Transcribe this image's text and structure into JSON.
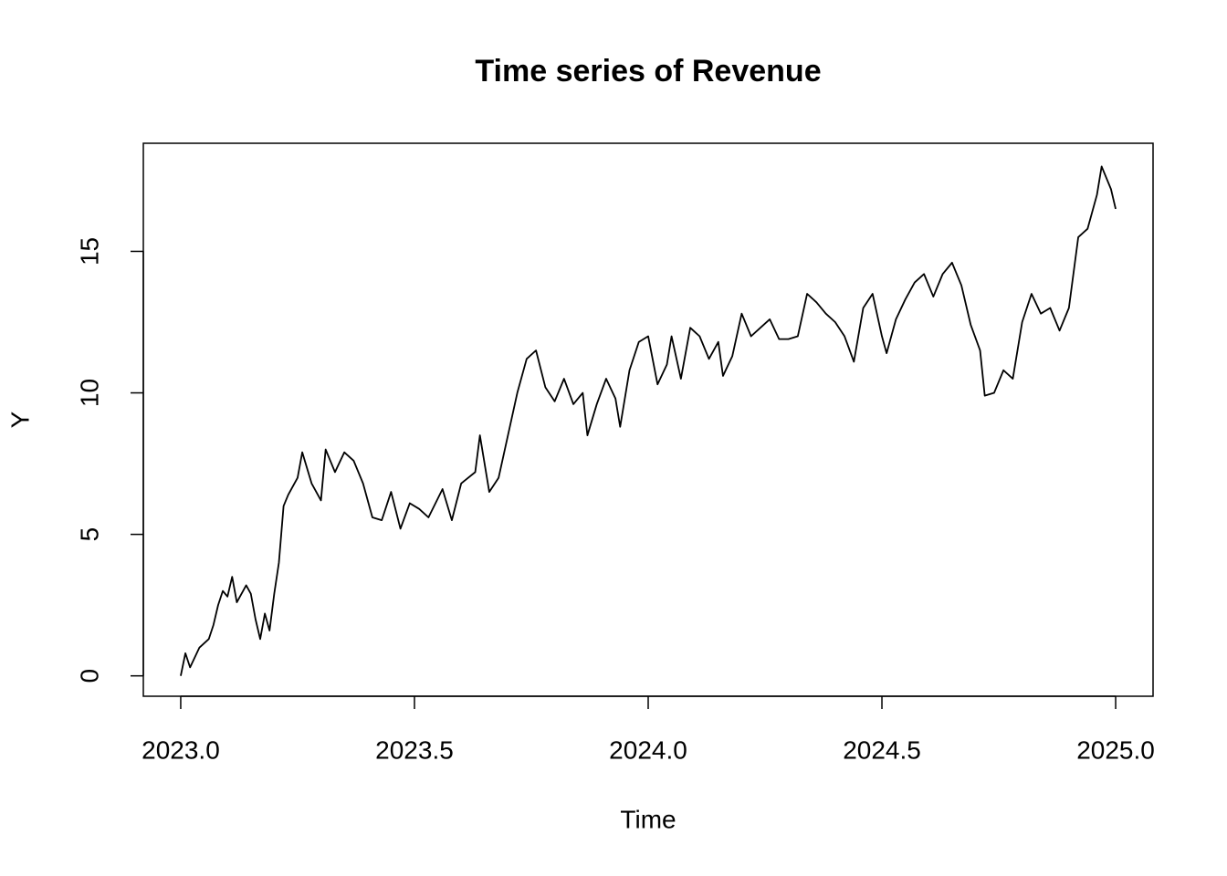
{
  "chart_data": {
    "type": "line",
    "title": "Time series of Revenue",
    "x_label": "Time",
    "y_label": "Y",
    "x": [
      2023.0,
      2023.01,
      2023.02,
      2023.04,
      2023.06,
      2023.07,
      2023.08,
      2023.09,
      2023.1,
      2023.11,
      2023.12,
      2023.14,
      2023.15,
      2023.16,
      2023.17,
      2023.18,
      2023.19,
      2023.2,
      2023.21,
      2023.22,
      2023.23,
      2023.25,
      2023.26,
      2023.28,
      2023.3,
      2023.31,
      2023.33,
      2023.35,
      2023.37,
      2023.39,
      2023.41,
      2023.43,
      2023.45,
      2023.47,
      2023.49,
      2023.51,
      2023.53,
      2023.56,
      2023.58,
      2023.6,
      2023.63,
      2023.64,
      2023.66,
      2023.68,
      2023.7,
      2023.72,
      2023.74,
      2023.76,
      2023.78,
      2023.8,
      2023.82,
      2023.84,
      2023.86,
      2023.87,
      2023.89,
      2023.91,
      2023.93,
      2023.94,
      2023.96,
      2023.98,
      2024.0,
      2024.02,
      2024.04,
      2024.05,
      2024.07,
      2024.09,
      2024.11,
      2024.13,
      2024.15,
      2024.16,
      2024.18,
      2024.2,
      2024.22,
      2024.24,
      2024.26,
      2024.28,
      2024.3,
      2024.32,
      2024.34,
      2024.36,
      2024.38,
      2024.4,
      2024.42,
      2024.44,
      2024.46,
      2024.48,
      2024.5,
      2024.51,
      2024.53,
      2024.55,
      2024.57,
      2024.59,
      2024.61,
      2024.63,
      2024.65,
      2024.67,
      2024.69,
      2024.71,
      2024.72,
      2024.74,
      2024.76,
      2024.78,
      2024.8,
      2024.82,
      2024.84,
      2024.86,
      2024.88,
      2024.9,
      2024.92,
      2024.94,
      2024.96,
      2024.97,
      2024.99,
      2025.0
    ],
    "values": [
      0,
      0.8,
      0.3,
      1.0,
      1.3,
      1.8,
      2.5,
      3.0,
      2.8,
      3.5,
      2.6,
      3.2,
      2.9,
      2.0,
      1.3,
      2.2,
      1.6,
      2.9,
      4.0,
      6.0,
      6.4,
      7.0,
      7.9,
      6.8,
      6.2,
      8.0,
      7.2,
      7.9,
      7.6,
      6.8,
      5.6,
      5.5,
      6.5,
      5.2,
      6.1,
      5.9,
      5.6,
      6.6,
      5.5,
      6.8,
      7.2,
      8.5,
      6.5,
      7.0,
      8.5,
      10.0,
      11.2,
      11.5,
      10.2,
      9.7,
      10.5,
      9.6,
      10.0,
      8.5,
      9.6,
      10.5,
      9.8,
      8.8,
      10.8,
      11.8,
      12.0,
      10.3,
      11.0,
      12.0,
      10.5,
      12.3,
      12.0,
      11.2,
      11.8,
      10.6,
      11.3,
      12.8,
      12.0,
      12.3,
      12.6,
      11.9,
      11.9,
      12.0,
      13.5,
      13.2,
      12.8,
      12.5,
      12.0,
      11.1,
      13.0,
      13.5,
      12.0,
      11.4,
      12.6,
      13.3,
      13.9,
      14.2,
      13.4,
      14.2,
      14.6,
      13.8,
      12.4,
      11.5,
      9.9,
      10.0,
      10.8,
      10.5,
      12.5,
      13.5,
      12.8,
      13.0,
      12.2,
      13.0,
      15.5,
      15.8,
      17.0,
      18.0,
      17.2,
      16.5
    ],
    "color": "#000000",
    "xlim": [
      2022.92,
      2025.08
    ],
    "ylim": [
      -0.72,
      18.82
    ],
    "xticks": [
      {
        "value": 2023,
        "label": "2023.0"
      },
      {
        "value": 2023.5,
        "label": "2023.5"
      },
      {
        "value": 2024,
        "label": "2024.0"
      },
      {
        "value": 2024.5,
        "label": "2024.5"
      },
      {
        "value": 2025,
        "label": "2025.0"
      }
    ],
    "yticks": [
      0,
      5,
      10,
      15
    ]
  }
}
